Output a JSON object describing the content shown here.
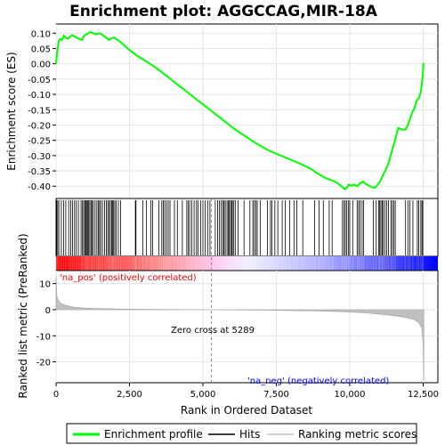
{
  "chart_data": {
    "type": "line",
    "title": "Enrichment plot: AGGCCAG,MIR-18A",
    "panels": {
      "enrichment": {
        "ylabel": "Enrichment score (ES)",
        "ylim": [
          -0.44,
          0.13
        ],
        "yticks": [
          0.1,
          0.05,
          0.0,
          -0.05,
          -0.1,
          -0.15,
          -0.2,
          -0.25,
          -0.3,
          -0.35,
          -0.4
        ],
        "ytick_labels": [
          "0.10",
          "0.05",
          "0.00",
          "-0.05",
          "-0.10",
          "-0.15",
          "-0.20",
          "-0.25",
          "-0.30",
          "-0.35",
          "-0.40"
        ],
        "series": [
          {
            "name": "Enrichment profile",
            "color": "#00ff00",
            "x": [
              0,
              40,
              90,
              150,
              200,
              260,
              330,
              400,
              480,
              560,
              650,
              760,
              880,
              940,
              990,
              1080,
              1150,
              1260,
              1380,
              1450,
              1530,
              1640,
              1720,
              1790,
              1860,
              1960,
              2100,
              2300,
              2500,
              2700,
              2900,
              3100,
              3300,
              3500,
              3700,
              3900,
              4100,
              4300,
              4500,
              4700,
              4900,
              5100,
              5300,
              5500,
              5700,
              5900,
              6100,
              6300,
              6500,
              6700,
              6900,
              7100,
              7300,
              7500,
              7700,
              7900,
              8100,
              8300,
              8500,
              8700,
              8900,
              9100,
              9300,
              9500,
              9650,
              9750,
              9830,
              9900,
              9960,
              10050,
              10150,
              10250,
              10350,
              10450,
              10550,
              10650,
              10750,
              10850,
              10950,
              11030,
              11080,
              11150,
              11230,
              11300,
              11360,
              11420,
              11480,
              11540,
              11650,
              11780,
              11900,
              11980,
              12050,
              12120,
              12200,
              12280,
              12360,
              12420,
              12460,
              12490,
              12510
            ],
            "y": [
              0.0,
              0.04,
              0.075,
              0.082,
              0.078,
              0.092,
              0.085,
              0.082,
              0.09,
              0.094,
              0.088,
              0.082,
              0.078,
              0.09,
              0.094,
              0.098,
              0.104,
              0.1,
              0.096,
              0.1,
              0.098,
              0.09,
              0.084,
              0.078,
              0.082,
              0.086,
              0.078,
              0.062,
              0.045,
              0.03,
              0.018,
              0.006,
              -0.006,
              -0.02,
              -0.035,
              -0.05,
              -0.065,
              -0.08,
              -0.095,
              -0.11,
              -0.125,
              -0.14,
              -0.155,
              -0.17,
              -0.185,
              -0.2,
              -0.215,
              -0.228,
              -0.24,
              -0.253,
              -0.265,
              -0.276,
              -0.286,
              -0.294,
              -0.302,
              -0.31,
              -0.318,
              -0.326,
              -0.335,
              -0.345,
              -0.358,
              -0.37,
              -0.378,
              -0.385,
              -0.395,
              -0.403,
              -0.41,
              -0.405,
              -0.395,
              -0.398,
              -0.395,
              -0.4,
              -0.39,
              -0.385,
              -0.393,
              -0.398,
              -0.403,
              -0.405,
              -0.395,
              -0.385,
              -0.375,
              -0.36,
              -0.345,
              -0.33,
              -0.31,
              -0.29,
              -0.27,
              -0.25,
              -0.21,
              -0.215,
              -0.215,
              -0.2,
              -0.18,
              -0.16,
              -0.145,
              -0.12,
              -0.11,
              -0.09,
              -0.06,
              -0.03,
              0.003
            ]
          }
        ]
      },
      "hits": {
        "description": "Vertical tick marks at ranked positions of gene-set members",
        "positions": [
          20,
          55,
          95,
          180,
          260,
          330,
          430,
          500,
          560,
          630,
          690,
          760,
          850,
          900,
          940,
          980,
          1010,
          1040,
          1080,
          1110,
          1150,
          1190,
          1230,
          1270,
          1330,
          1390,
          1440,
          1480,
          1520,
          1580,
          1650,
          1710,
          1760,
          1800,
          1850,
          1890,
          1920,
          1960,
          2000,
          2050,
          2120,
          2200,
          2700,
          2720,
          2950,
          3080,
          3230,
          3290,
          3500,
          3600,
          3650,
          3700,
          3760,
          3820,
          3880,
          4030,
          4130,
          4300,
          4450,
          4500,
          4550,
          4620,
          4700,
          4780,
          4830,
          4920,
          5000,
          5080,
          5160,
          5240,
          5420,
          5500,
          5560,
          5620,
          5680,
          5720,
          5760,
          5820,
          5860,
          5900,
          5940,
          5980,
          6000,
          6050,
          6100,
          6200,
          6400,
          6600,
          6700,
          6750,
          6800,
          6850,
          6950,
          7200,
          7300,
          7350,
          7450,
          7550,
          7700,
          7800,
          7950,
          8100,
          8200,
          8400,
          8800,
          8950,
          9100,
          9300,
          9400,
          9750,
          9800,
          9850,
          9900,
          9960,
          10000,
          10100,
          10250,
          10300,
          10350,
          10420,
          10470,
          10800,
          10900,
          10980,
          11020,
          11060,
          11100,
          11140,
          11200,
          11260,
          11320,
          11400,
          11450,
          11500,
          11550,
          11900,
          11980,
          12050,
          12150,
          12300,
          12350,
          12420,
          12460,
          12490
        ]
      },
      "ranked_metric": {
        "ylabel": "Ranked list metric (PreRanked)",
        "ylim": [
          -28,
          15
        ],
        "yticks": [
          10,
          0,
          -10,
          -20
        ],
        "ytick_labels": [
          "10",
          "0",
          "-10",
          "-20"
        ],
        "x": [
          0,
          30,
          80,
          150,
          250,
          400,
          600,
          900,
          1300,
          1800,
          2500,
          3500,
          4500,
          5289,
          6000,
          7000,
          8000,
          9000,
          9800,
          10500,
          11000,
          11500,
          11900,
          12200,
          12350,
          12450,
          12500,
          12520
        ],
        "y": [
          13.0,
          5.0,
          3.5,
          2.5,
          2.0,
          1.5,
          1.0,
          0.7,
          0.5,
          0.35,
          0.2,
          0.1,
          0.05,
          0.0,
          -0.1,
          -0.2,
          -0.35,
          -0.5,
          -0.8,
          -1.2,
          -1.7,
          -2.3,
          -3.0,
          -3.8,
          -5.0,
          -7.0,
          -13.0,
          -27.0
        ],
        "annotations": {
          "pos_label": "'na_pos' (positively correlated)",
          "neg_label": "'na_neg' (negatively correlated)",
          "zero_cross_label": "Zero cross at 5289",
          "zero_cross_x": 5289
        }
      }
    },
    "xlabel": "Rank in Ordered Dataset",
    "xlim": [
      0,
      13000
    ],
    "xticks": [
      0,
      2500,
      5000,
      7500,
      10000,
      12500
    ],
    "xtick_labels": [
      "0",
      "2,500",
      "5,000",
      "7,500",
      "10,000",
      "12,500"
    ],
    "legend": {
      "placement": "bottom",
      "items": [
        {
          "label": "Enrichment profile",
          "color": "#00ff00"
        },
        {
          "label": "Hits",
          "color": "#000000"
        },
        {
          "label": "Ranking metric scores",
          "color": "#c0c0c0"
        }
      ]
    },
    "colors": {
      "profile": "#00ff00",
      "hit": "#000000",
      "metric_fill": "#c0c0c0",
      "pos_band": "#ff0000",
      "neg_band": "#0000ff",
      "grid": "#e6e6e6"
    }
  }
}
